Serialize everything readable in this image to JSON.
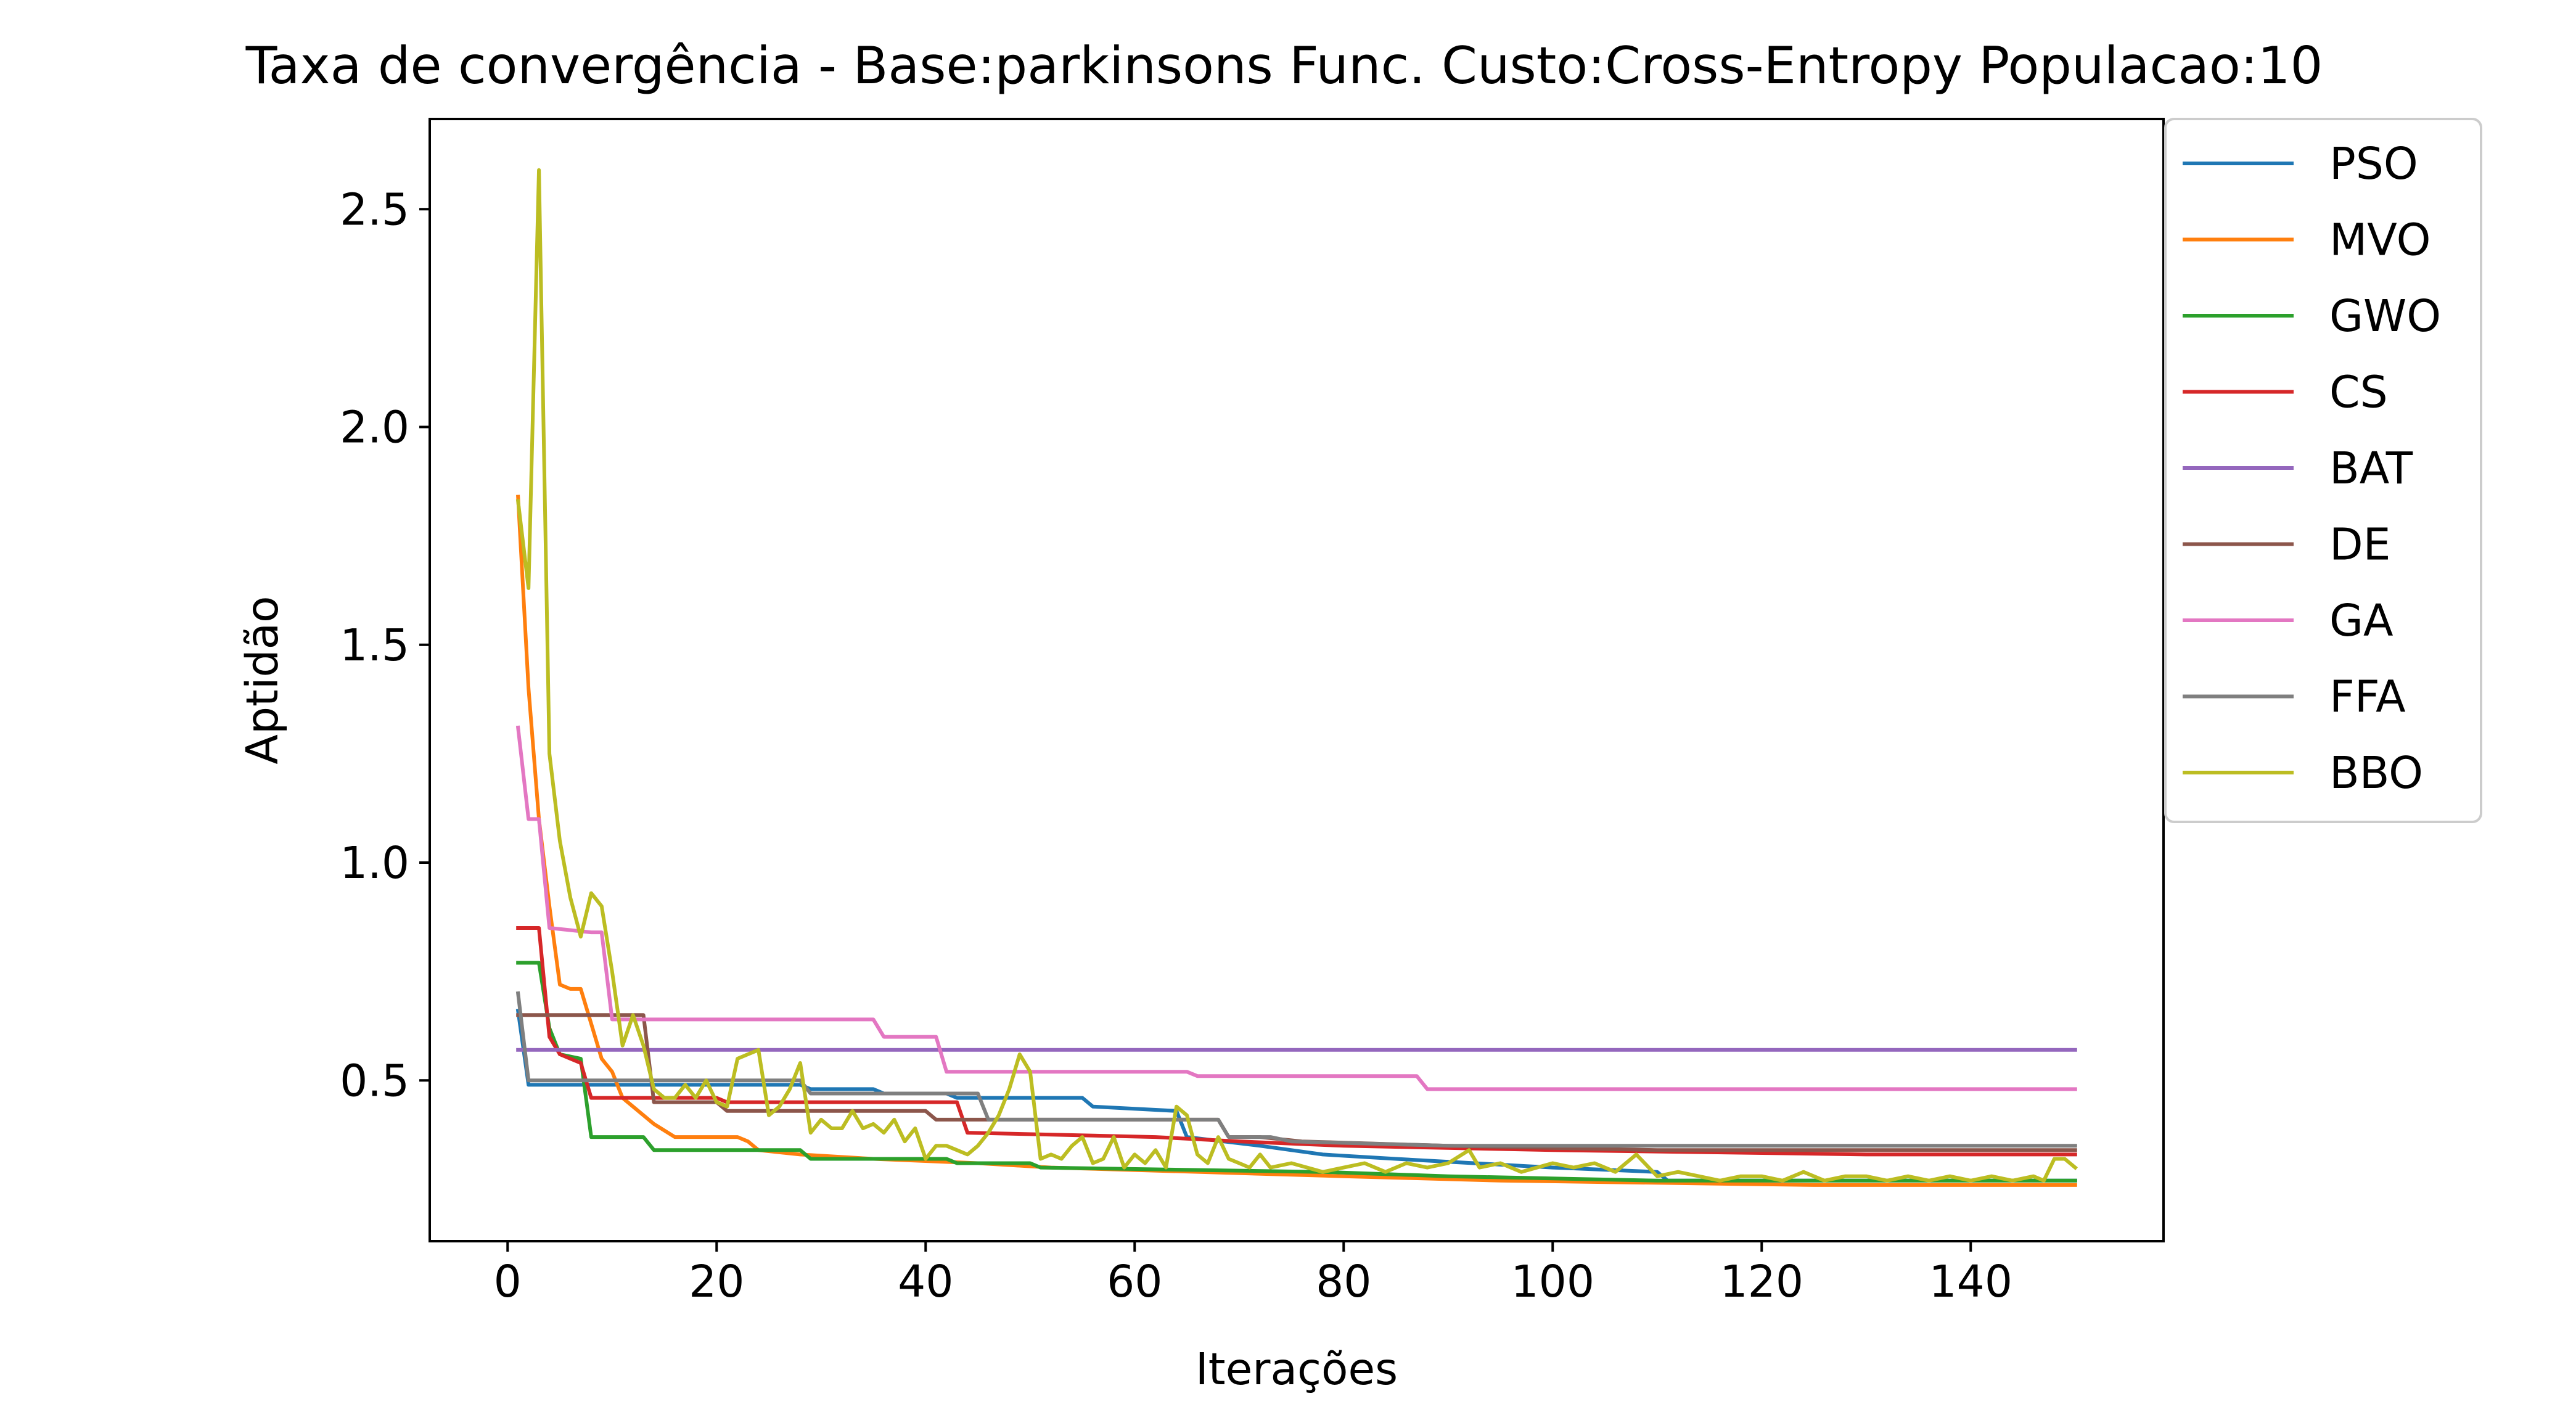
{
  "chart_data": {
    "type": "line",
    "title": "Taxa de convergência - Base:parkinsons Func. Custo:Cross-Entropy Populacao:10",
    "xlabel": "Iterações",
    "ylabel": "Aptidão",
    "xlim": [
      -7.45,
      158.45
    ],
    "ylim": [
      0.131,
      2.707
    ],
    "xticks": [
      0,
      20,
      40,
      60,
      80,
      100,
      120,
      140
    ],
    "yticks": [
      0.5,
      1.0,
      1.5,
      2.0,
      2.5
    ],
    "xtick_labels": [
      "0",
      "20",
      "40",
      "60",
      "80",
      "100",
      "120",
      "140"
    ],
    "ytick_labels": [
      "0.5",
      "1.0",
      "1.5",
      "2.0",
      "2.5"
    ],
    "grid": false,
    "legend_position": "outside-top-right",
    "series": [
      {
        "name": "PSO",
        "color": "#1f77b4",
        "points": [
          [
            1,
            0.66
          ],
          [
            2,
            0.49
          ],
          [
            3,
            0.49
          ],
          [
            8,
            0.49
          ],
          [
            9,
            0.49
          ],
          [
            20,
            0.49
          ],
          [
            28,
            0.49
          ],
          [
            29,
            0.48
          ],
          [
            35,
            0.48
          ],
          [
            36,
            0.47
          ],
          [
            42,
            0.47
          ],
          [
            43,
            0.46
          ],
          [
            55,
            0.46
          ],
          [
            56,
            0.44
          ],
          [
            64,
            0.43
          ],
          [
            65,
            0.37
          ],
          [
            72,
            0.35
          ],
          [
            78,
            0.33
          ],
          [
            85,
            0.32
          ],
          [
            100,
            0.3
          ],
          [
            110,
            0.29
          ],
          [
            111,
            0.27
          ],
          [
            150,
            0.27
          ]
        ]
      },
      {
        "name": "MVO",
        "color": "#ff7f0e",
        "points": [
          [
            1,
            1.84
          ],
          [
            2,
            1.4
          ],
          [
            3,
            1.1
          ],
          [
            4,
            0.9
          ],
          [
            5,
            0.72
          ],
          [
            6,
            0.71
          ],
          [
            7,
            0.71
          ],
          [
            8,
            0.63
          ],
          [
            9,
            0.55
          ],
          [
            10,
            0.52
          ],
          [
            11,
            0.46
          ],
          [
            14,
            0.4
          ],
          [
            16,
            0.37
          ],
          [
            22,
            0.37
          ],
          [
            23,
            0.36
          ],
          [
            24,
            0.34
          ],
          [
            28,
            0.33
          ],
          [
            35,
            0.32
          ],
          [
            45,
            0.31
          ],
          [
            52,
            0.3
          ],
          [
            80,
            0.28
          ],
          [
            95,
            0.27
          ],
          [
            125,
            0.26
          ],
          [
            150,
            0.26
          ]
        ]
      },
      {
        "name": "GWO",
        "color": "#2ca02c",
        "points": [
          [
            1,
            0.77
          ],
          [
            2,
            0.77
          ],
          [
            3,
            0.77
          ],
          [
            4,
            0.62
          ],
          [
            5,
            0.56
          ],
          [
            7,
            0.55
          ],
          [
            8,
            0.37
          ],
          [
            13,
            0.37
          ],
          [
            14,
            0.34
          ],
          [
            28,
            0.34
          ],
          [
            29,
            0.32
          ],
          [
            42,
            0.32
          ],
          [
            43,
            0.31
          ],
          [
            50,
            0.31
          ],
          [
            51,
            0.3
          ],
          [
            78,
            0.29
          ],
          [
            90,
            0.28
          ],
          [
            110,
            0.27
          ],
          [
            150,
            0.27
          ]
        ]
      },
      {
        "name": "CS",
        "color": "#d62728",
        "points": [
          [
            1,
            0.85
          ],
          [
            2,
            0.85
          ],
          [
            3,
            0.85
          ],
          [
            4,
            0.6
          ],
          [
            5,
            0.56
          ],
          [
            6,
            0.55
          ],
          [
            7,
            0.54
          ],
          [
            8,
            0.46
          ],
          [
            20,
            0.46
          ],
          [
            21,
            0.45
          ],
          [
            38,
            0.45
          ],
          [
            43,
            0.45
          ],
          [
            44,
            0.38
          ],
          [
            62,
            0.37
          ],
          [
            70,
            0.36
          ],
          [
            80,
            0.35
          ],
          [
            100,
            0.34
          ],
          [
            130,
            0.33
          ],
          [
            150,
            0.33
          ]
        ]
      },
      {
        "name": "BAT",
        "color": "#9467bd",
        "points": [
          [
            1,
            0.57
          ],
          [
            150,
            0.57
          ]
        ]
      },
      {
        "name": "DE",
        "color": "#8c564b",
        "points": [
          [
            1,
            0.65
          ],
          [
            12,
            0.65
          ],
          [
            13,
            0.65
          ],
          [
            14,
            0.45
          ],
          [
            20,
            0.45
          ],
          [
            21,
            0.43
          ],
          [
            40,
            0.43
          ],
          [
            41,
            0.41
          ],
          [
            68,
            0.41
          ],
          [
            69,
            0.37
          ],
          [
            72,
            0.37
          ],
          [
            76,
            0.36
          ],
          [
            90,
            0.35
          ],
          [
            110,
            0.34
          ],
          [
            150,
            0.34
          ]
        ]
      },
      {
        "name": "GA",
        "color": "#e377c2",
        "points": [
          [
            1,
            1.31
          ],
          [
            2,
            1.1
          ],
          [
            3,
            1.1
          ],
          [
            4,
            0.85
          ],
          [
            8,
            0.84
          ],
          [
            9,
            0.84
          ],
          [
            10,
            0.64
          ],
          [
            35,
            0.64
          ],
          [
            36,
            0.6
          ],
          [
            41,
            0.6
          ],
          [
            42,
            0.52
          ],
          [
            65,
            0.52
          ],
          [
            66,
            0.51
          ],
          [
            87,
            0.51
          ],
          [
            88,
            0.48
          ],
          [
            117,
            0.48
          ],
          [
            118,
            0.48
          ],
          [
            150,
            0.48
          ]
        ]
      },
      {
        "name": "FFA",
        "color": "#7f7f7f",
        "points": [
          [
            1,
            0.7
          ],
          [
            2,
            0.5
          ],
          [
            28,
            0.5
          ],
          [
            29,
            0.47
          ],
          [
            45,
            0.47
          ],
          [
            46,
            0.41
          ],
          [
            68,
            0.41
          ],
          [
            69,
            0.37
          ],
          [
            73,
            0.37
          ],
          [
            75,
            0.36
          ],
          [
            90,
            0.35
          ],
          [
            110,
            0.35
          ],
          [
            150,
            0.35
          ]
        ]
      },
      {
        "name": "BBO",
        "color": "#bcbd22",
        "points": [
          [
            1,
            1.83
          ],
          [
            2,
            1.63
          ],
          [
            3,
            2.59
          ],
          [
            4,
            1.25
          ],
          [
            5,
            1.05
          ],
          [
            6,
            0.92
          ],
          [
            7,
            0.83
          ],
          [
            8,
            0.93
          ],
          [
            9,
            0.9
          ],
          [
            10,
            0.75
          ],
          [
            11,
            0.58
          ],
          [
            12,
            0.65
          ],
          [
            13,
            0.58
          ],
          [
            14,
            0.48
          ],
          [
            15,
            0.46
          ],
          [
            16,
            0.46
          ],
          [
            17,
            0.49
          ],
          [
            18,
            0.46
          ],
          [
            19,
            0.5
          ],
          [
            20,
            0.45
          ],
          [
            21,
            0.44
          ],
          [
            22,
            0.55
          ],
          [
            23,
            0.56
          ],
          [
            24,
            0.57
          ],
          [
            25,
            0.42
          ],
          [
            26,
            0.44
          ],
          [
            27,
            0.48
          ],
          [
            28,
            0.54
          ],
          [
            29,
            0.38
          ],
          [
            30,
            0.41
          ],
          [
            31,
            0.39
          ],
          [
            32,
            0.39
          ],
          [
            33,
            0.43
          ],
          [
            34,
            0.39
          ],
          [
            35,
            0.4
          ],
          [
            36,
            0.38
          ],
          [
            37,
            0.41
          ],
          [
            38,
            0.36
          ],
          [
            39,
            0.39
          ],
          [
            40,
            0.32
          ],
          [
            41,
            0.35
          ],
          [
            42,
            0.35
          ],
          [
            43,
            0.34
          ],
          [
            44,
            0.33
          ],
          [
            45,
            0.35
          ],
          [
            46,
            0.38
          ],
          [
            47,
            0.42
          ],
          [
            48,
            0.48
          ],
          [
            49,
            0.56
          ],
          [
            50,
            0.52
          ],
          [
            51,
            0.32
          ],
          [
            52,
            0.33
          ],
          [
            53,
            0.32
          ],
          [
            54,
            0.35
          ],
          [
            55,
            0.37
          ],
          [
            56,
            0.31
          ],
          [
            57,
            0.32
          ],
          [
            58,
            0.37
          ],
          [
            59,
            0.3
          ],
          [
            60,
            0.33
          ],
          [
            61,
            0.31
          ],
          [
            62,
            0.34
          ],
          [
            63,
            0.3
          ],
          [
            64,
            0.44
          ],
          [
            65,
            0.42
          ],
          [
            66,
            0.33
          ],
          [
            67,
            0.31
          ],
          [
            68,
            0.37
          ],
          [
            69,
            0.32
          ],
          [
            70,
            0.31
          ],
          [
            71,
            0.3
          ],
          [
            72,
            0.33
          ],
          [
            73,
            0.3
          ],
          [
            75,
            0.31
          ],
          [
            78,
            0.29
          ],
          [
            80,
            0.3
          ],
          [
            82,
            0.31
          ],
          [
            84,
            0.29
          ],
          [
            86,
            0.31
          ],
          [
            88,
            0.3
          ],
          [
            90,
            0.31
          ],
          [
            92,
            0.34
          ],
          [
            93,
            0.3
          ],
          [
            95,
            0.31
          ],
          [
            97,
            0.29
          ],
          [
            100,
            0.31
          ],
          [
            102,
            0.3
          ],
          [
            104,
            0.31
          ],
          [
            106,
            0.29
          ],
          [
            108,
            0.33
          ],
          [
            110,
            0.28
          ],
          [
            112,
            0.29
          ],
          [
            114,
            0.28
          ],
          [
            116,
            0.27
          ],
          [
            118,
            0.28
          ],
          [
            120,
            0.28
          ],
          [
            122,
            0.27
          ],
          [
            124,
            0.29
          ],
          [
            126,
            0.27
          ],
          [
            128,
            0.28
          ],
          [
            130,
            0.28
          ],
          [
            132,
            0.27
          ],
          [
            134,
            0.28
          ],
          [
            136,
            0.27
          ],
          [
            138,
            0.28
          ],
          [
            140,
            0.27
          ],
          [
            142,
            0.28
          ],
          [
            144,
            0.27
          ],
          [
            146,
            0.28
          ],
          [
            147,
            0.27
          ],
          [
            148,
            0.32
          ],
          [
            149,
            0.32
          ],
          [
            150,
            0.3
          ]
        ]
      }
    ]
  }
}
